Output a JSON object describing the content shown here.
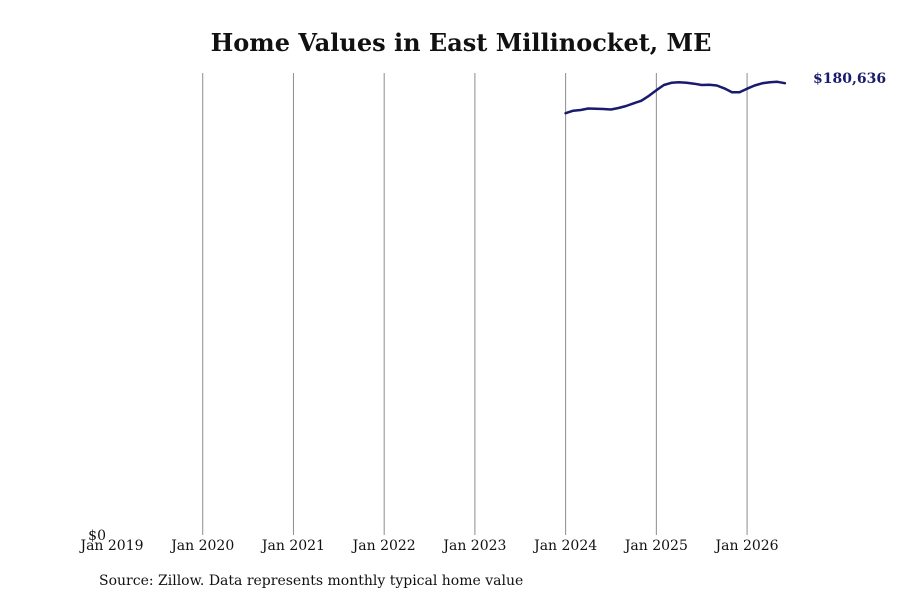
{
  "chart_data": {
    "type": "line",
    "title": "Home Values in East Millinocket, ME",
    "xlabel": "",
    "ylabel": "",
    "x_tick_labels": [
      "Jan 2019",
      "Jan 2020",
      "Jan 2021",
      "Jan 2022",
      "Jan 2023",
      "Jan 2024",
      "Jan 2025",
      "Jan 2026"
    ],
    "y_tick_labels": [
      "$0"
    ],
    "xlim": [
      "2019-01",
      "2026-08"
    ],
    "ylim": [
      0,
      190000
    ],
    "grid": "vertical",
    "line_color": "#1a1a6e",
    "end_label": "$180,636",
    "series": [
      {
        "x": [
          "2024-01",
          "2024-02",
          "2024-03",
          "2024-04",
          "2024-05",
          "2024-06",
          "2024-07",
          "2024-08",
          "2024-09",
          "2024-10",
          "2024-11",
          "2024-12",
          "2025-01",
          "2025-02",
          "2025-03",
          "2025-04",
          "2025-05",
          "2025-06",
          "2025-07",
          "2025-08",
          "2025-09",
          "2025-10",
          "2025-11",
          "2025-12",
          "2026-01",
          "2026-02",
          "2026-03",
          "2026-04",
          "2026-05",
          "2026-06"
        ],
        "values": [
          168500,
          169500,
          169800,
          170400,
          170300,
          170200,
          170000,
          170600,
          171400,
          172500,
          173500,
          175500,
          177800,
          179900,
          180800,
          181000,
          180800,
          180400,
          179900,
          180000,
          179700,
          178500,
          177000,
          177000,
          178400,
          179700,
          180600,
          181000,
          181200,
          180636
        ]
      }
    ]
  },
  "source_note": "Source: Zillow. Data represents monthly typical home value"
}
